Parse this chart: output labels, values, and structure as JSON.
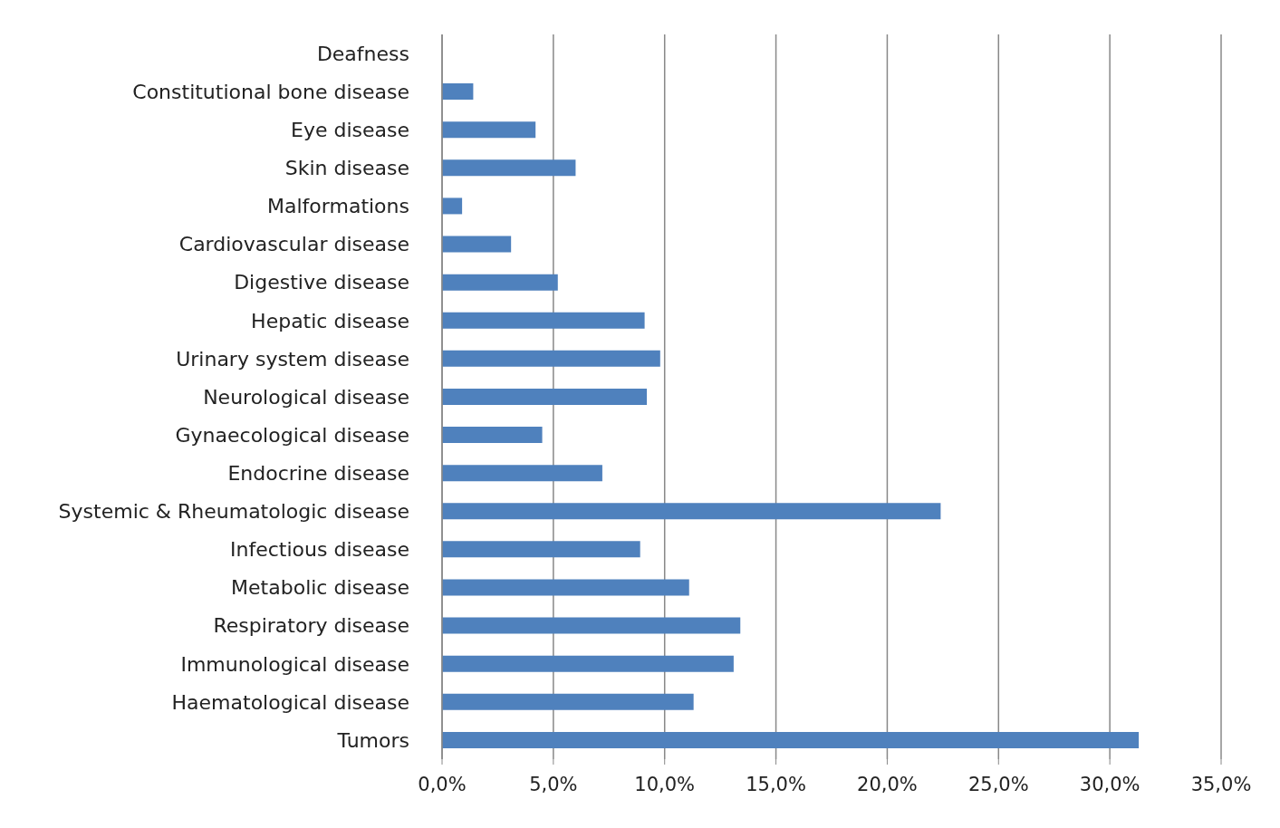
{
  "chart_data": {
    "type": "bar",
    "orientation": "horizontal",
    "categories": [
      "Deafness",
      "Constitutional  bone disease",
      "Eye disease",
      "Skin disease",
      "Malformations",
      "Cardiovascular  disease",
      "Digestive disease",
      "Hepatic disease",
      "Urinary system disease",
      "Neurological  disease",
      "Gynaecological  disease",
      "Endocrine  disease",
      "Systemic & Rheumatologic  disease",
      "Infectious disease",
      "Metabolic disease",
      "Respiratory disease",
      "Immunological  disease",
      "Haematological  disease",
      "Tumors"
    ],
    "values": [
      0,
      1.4,
      4.2,
      6.0,
      0.9,
      3.1,
      5.2,
      9.1,
      9.8,
      9.2,
      4.5,
      7.2,
      22.4,
      8.9,
      11.1,
      13.4,
      13.1,
      11.3,
      31.3
    ],
    "color": "#4f81bd",
    "xlim": [
      0,
      35
    ],
    "xticks": [
      {
        "value": 0,
        "label": "0,0%"
      },
      {
        "value": 5,
        "label": "5,0%"
      },
      {
        "value": 10,
        "label": "10,0%"
      },
      {
        "value": 15,
        "label": "15,0%"
      },
      {
        "value": 20,
        "label": "20,0%"
      },
      {
        "value": 25,
        "label": "25,0%"
      },
      {
        "value": 30,
        "label": "30,0%"
      },
      {
        "value": 35,
        "label": "35,0%"
      }
    ],
    "grid": "x"
  }
}
